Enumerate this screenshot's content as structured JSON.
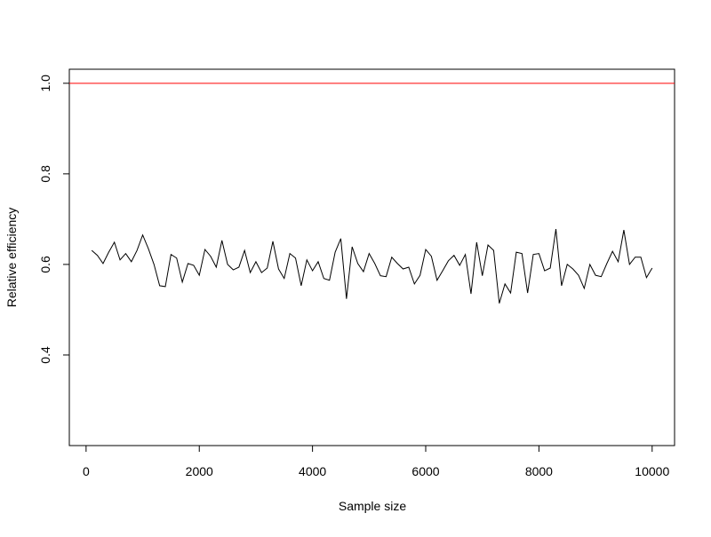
{
  "chart_data": {
    "type": "line",
    "x_label": "Sample size",
    "y_label": "Relative efficiency",
    "x": [
      100,
      200,
      300,
      400,
      500,
      600,
      700,
      800,
      900,
      1000,
      1100,
      1200,
      1300,
      1400,
      1500,
      1600,
      1700,
      1800,
      1900,
      2000,
      2100,
      2200,
      2300,
      2400,
      2500,
      2600,
      2700,
      2800,
      2900,
      3000,
      3100,
      3200,
      3300,
      3400,
      3500,
      3600,
      3700,
      3800,
      3900,
      4000,
      4100,
      4200,
      4300,
      4400,
      4500,
      4600,
      4700,
      4800,
      4900,
      5000,
      5100,
      5200,
      5300,
      5400,
      5500,
      5600,
      5700,
      5800,
      5900,
      6000,
      6100,
      6200,
      6300,
      6400,
      6500,
      6600,
      6700,
      6800,
      6900,
      7000,
      7100,
      7200,
      7300,
      7400,
      7500,
      7600,
      7700,
      7800,
      7900,
      8000,
      8100,
      8200,
      8300,
      8400,
      8500,
      8600,
      8700,
      8800,
      8900,
      9000,
      9100,
      9200,
      9300,
      9400,
      9500,
      9600,
      9700,
      9800,
      9900,
      10000
    ],
    "series": [
      {
        "color": "#000000",
        "values": [
          0.631,
          0.62,
          0.602,
          0.627,
          0.649,
          0.61,
          0.624,
          0.606,
          0.631,
          0.665,
          0.635,
          0.6,
          0.553,
          0.551,
          0.622,
          0.614,
          0.561,
          0.602,
          0.598,
          0.576,
          0.633,
          0.618,
          0.594,
          0.653,
          0.6,
          0.588,
          0.594,
          0.631,
          0.582,
          0.606,
          0.582,
          0.592,
          0.651,
          0.59,
          0.569,
          0.624,
          0.614,
          0.553,
          0.61,
          0.586,
          0.606,
          0.569,
          0.565,
          0.627,
          0.657,
          0.524,
          0.639,
          0.602,
          0.584,
          0.624,
          0.602,
          0.575,
          0.573,
          0.616,
          0.602,
          0.59,
          0.594,
          0.557,
          0.576,
          0.633,
          0.618,
          0.565,
          0.586,
          0.608,
          0.62,
          0.598,
          0.622,
          0.535,
          0.649,
          0.575,
          0.643,
          0.631,
          0.514,
          0.557,
          0.537,
          0.627,
          0.624,
          0.537,
          0.622,
          0.624,
          0.586,
          0.592,
          0.678,
          0.553,
          0.6,
          0.59,
          0.576,
          0.547,
          0.6,
          0.576,
          0.573,
          0.602,
          0.629,
          0.606,
          0.676,
          0.6,
          0.616,
          0.616,
          0.571,
          0.592
        ]
      }
    ],
    "reference_lines": [
      {
        "value": 1,
        "color": "#ff0000"
      }
    ],
    "xlim": [
      -296,
      10396
    ],
    "ylim": [
      0.2,
      1.031
    ],
    "xticks": [
      0,
      2000,
      4000,
      6000,
      8000,
      10000
    ],
    "yticks": [
      0.4,
      0.6,
      0.8,
      {
        "value": 1,
        "label": "1.0"
      }
    ]
  }
}
